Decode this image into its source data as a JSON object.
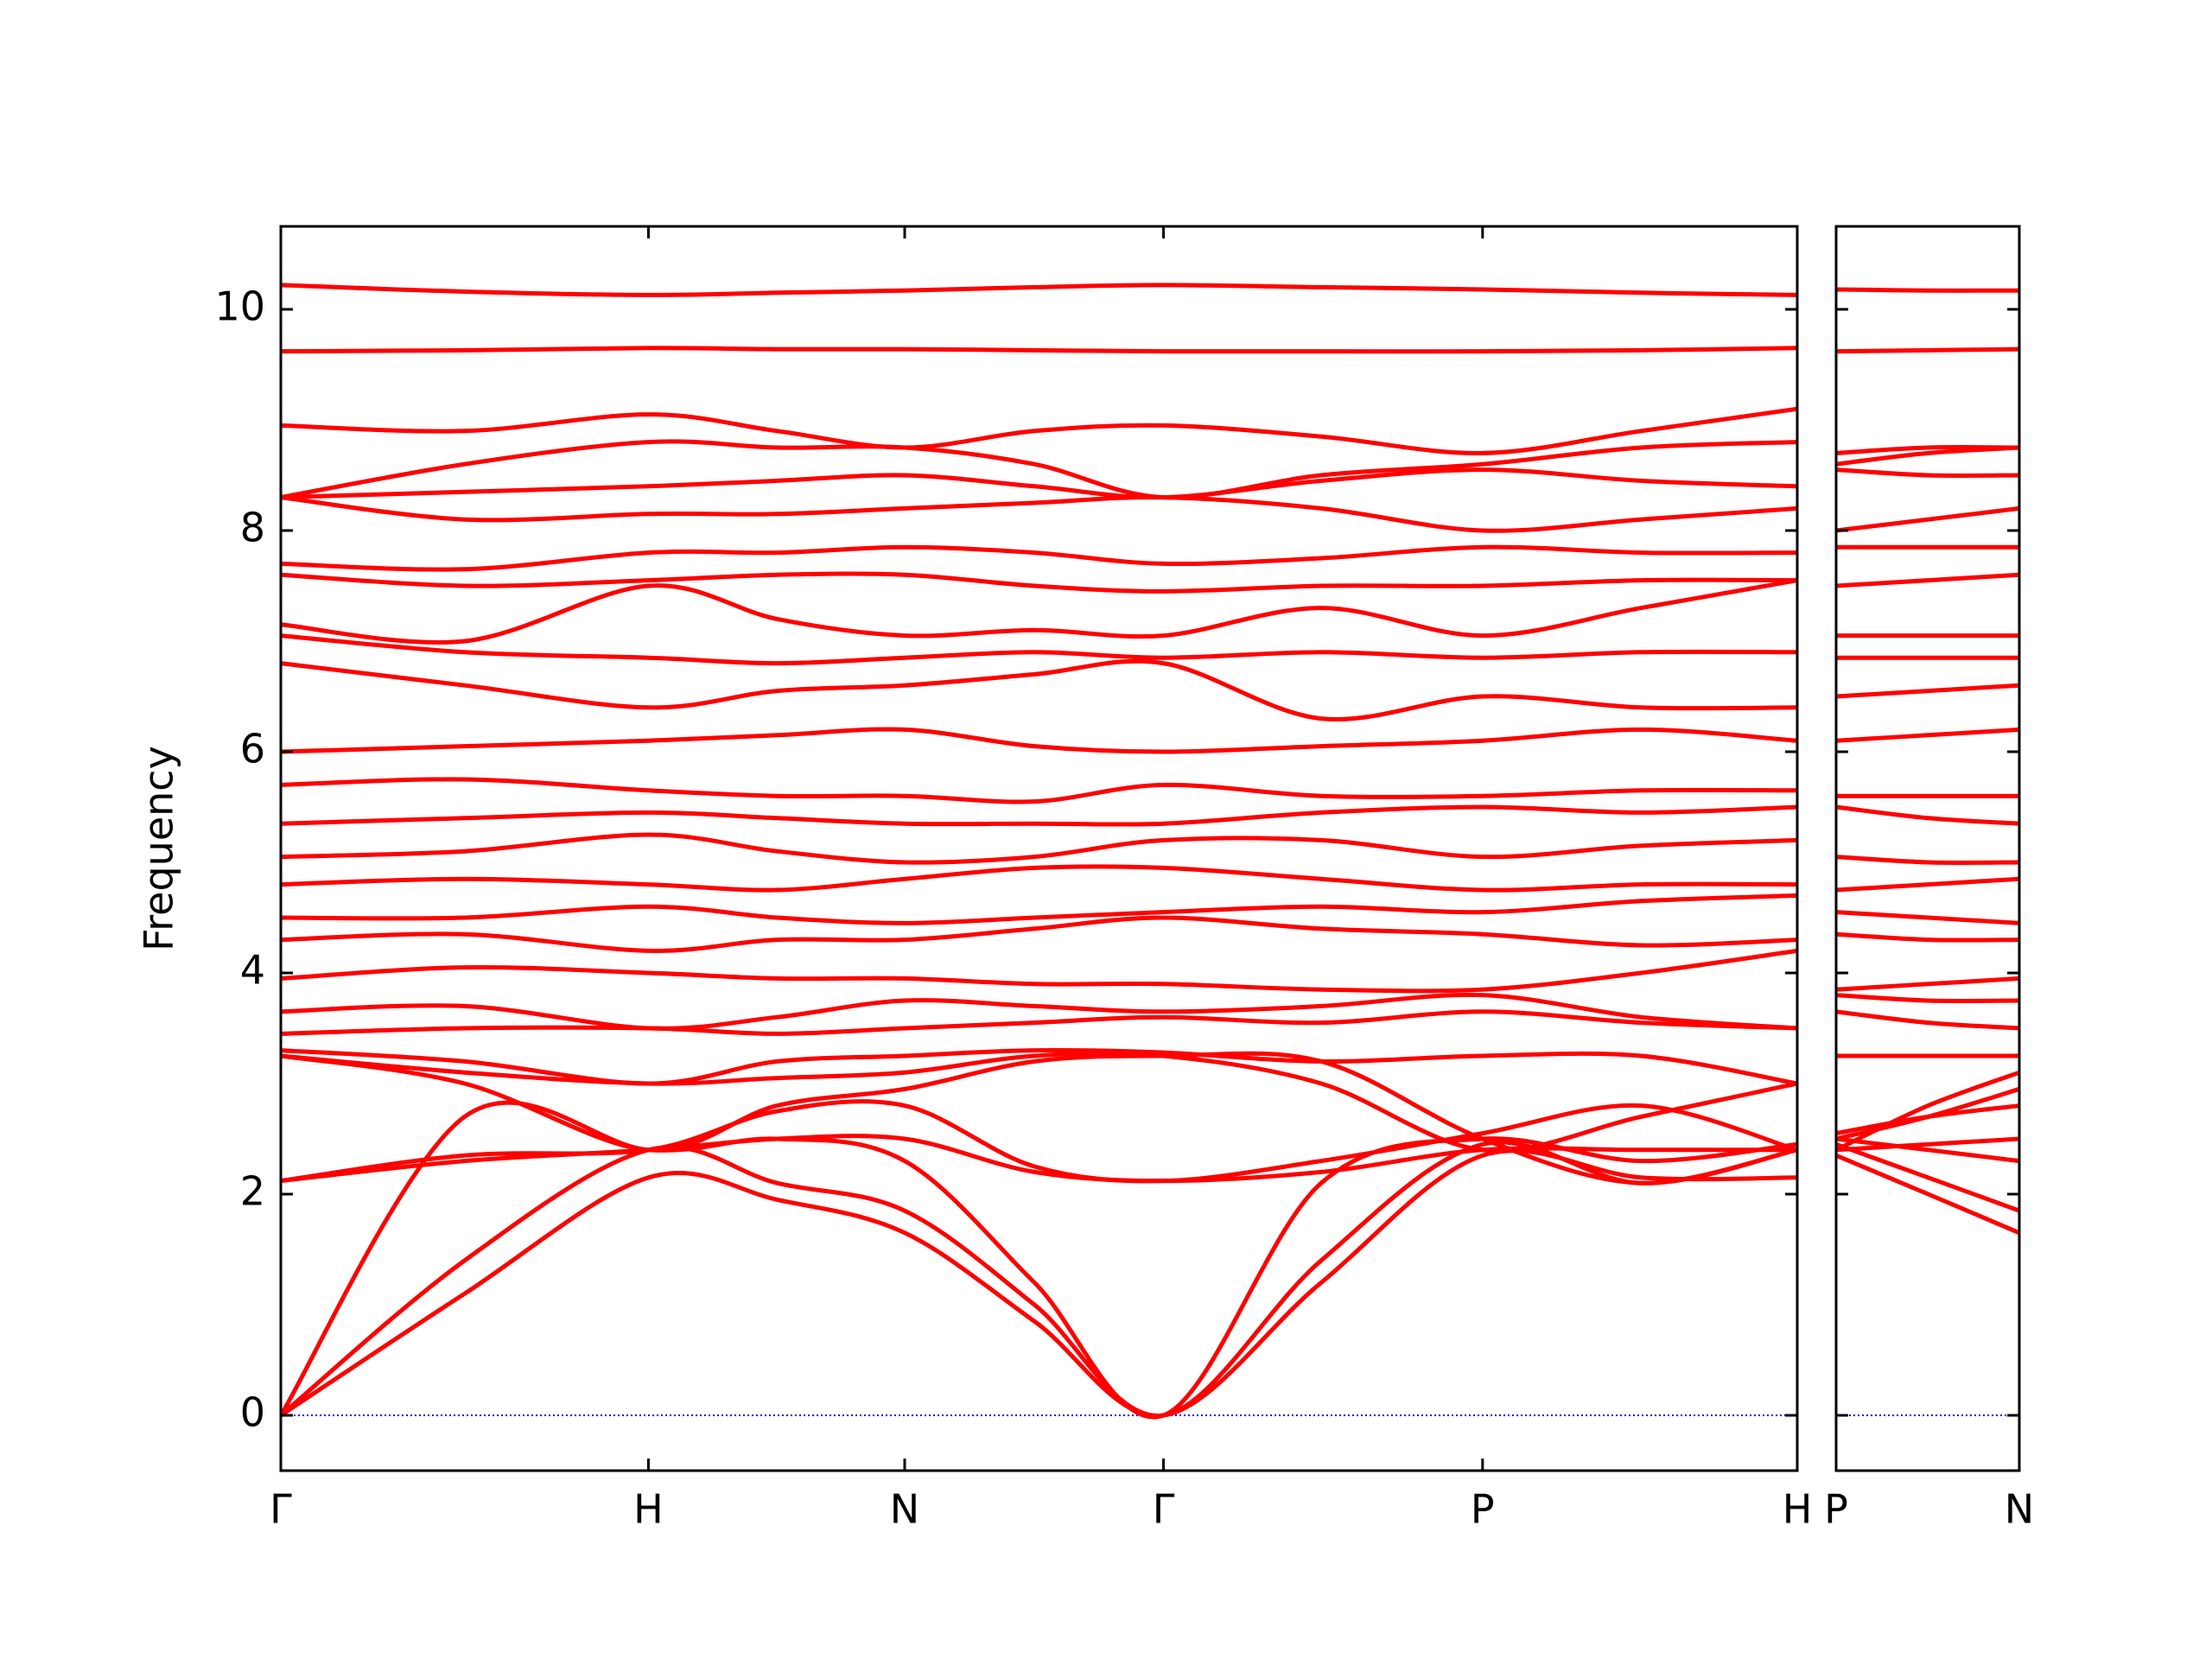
{
  "chart_data": [
    {
      "type": "line",
      "ylabel": "Frequency",
      "color": "#ff0000",
      "ylim": [
        -0.5,
        10.75
      ],
      "xlim": [
        0,
        4.125
      ],
      "yticks": [
        0,
        2,
        4,
        6,
        8,
        10
      ],
      "xticks": [
        {
          "value": 0,
          "label": "Γ"
        },
        {
          "value": 1,
          "label": "H"
        },
        {
          "value": 1.697,
          "label": "N"
        },
        {
          "value": 2.401,
          "label": "Γ"
        },
        {
          "value": 3.269,
          "label": "P"
        },
        {
          "value": 4.125,
          "label": "H"
        }
      ],
      "hlines": [
        0
      ],
      "hline_color": "#0000cc",
      "x": [
        0,
        0.5,
        1,
        1.35,
        1.697,
        2.05,
        2.401,
        2.83,
        3.269,
        3.7,
        4.125
      ],
      "series": [
        {
          "values": [
            0,
            1.1,
            2.15,
            1.95,
            1.65,
            0.85,
            0,
            1.2,
            2.35,
            2.15,
            2.15
          ]
        },
        {
          "values": [
            0,
            1.4,
            2.4,
            2.1,
            1.85,
            1.0,
            0,
            1.4,
            2.45,
            2.1,
            2.4
          ]
        },
        {
          "values": [
            0,
            2.7,
            2.4,
            2.5,
            2.3,
            1.2,
            0,
            2.1,
            2.5,
            2.3,
            2.45
          ]
        },
        {
          "values": [
            2.12,
            2.3,
            2.4,
            2.5,
            2.5,
            2.2,
            2.12,
            2.2,
            2.4,
            2.4,
            2.4
          ]
        },
        {
          "values": [
            2.12,
            2.35,
            2.4,
            2.75,
            2.8,
            2.25,
            2.12,
            2.3,
            2.55,
            2.8,
            2.4
          ]
        },
        {
          "values": [
            3.25,
            3.0,
            2.4,
            2.8,
            2.95,
            3.2,
            3.25,
            3.2,
            2.5,
            2.1,
            2.4
          ]
        },
        {
          "values": [
            3.25,
            3.1,
            3.0,
            3.05,
            3.1,
            3.25,
            3.25,
            3.0,
            2.4,
            2.7,
            3.0
          ]
        },
        {
          "values": [
            3.3,
            3.2,
            3.0,
            3.2,
            3.25,
            3.3,
            3.28,
            3.2,
            3.25,
            3.25,
            3.0
          ]
        },
        {
          "values": [
            3.45,
            3.5,
            3.5,
            3.45,
            3.5,
            3.55,
            3.6,
            3.55,
            3.65,
            3.55,
            3.5
          ]
        },
        {
          "values": [
            3.65,
            3.7,
            3.5,
            3.6,
            3.75,
            3.7,
            3.65,
            3.7,
            3.8,
            3.6,
            3.5
          ]
        },
        {
          "values": [
            3.95,
            4.05,
            4.0,
            3.95,
            3.95,
            3.9,
            3.9,
            3.85,
            3.85,
            4.0,
            4.2
          ]
        },
        {
          "values": [
            4.3,
            4.35,
            4.2,
            4.3,
            4.3,
            4.4,
            4.5,
            4.4,
            4.35,
            4.25,
            4.3
          ]
        },
        {
          "values": [
            4.5,
            4.5,
            4.6,
            4.5,
            4.45,
            4.5,
            4.55,
            4.6,
            4.55,
            4.65,
            4.7
          ]
        },
        {
          "values": [
            4.8,
            4.85,
            4.8,
            4.75,
            4.85,
            4.95,
            4.95,
            4.85,
            4.75,
            4.8,
            4.8
          ]
        },
        {
          "values": [
            5.05,
            5.1,
            5.25,
            5.1,
            5.0,
            5.05,
            5.2,
            5.2,
            5.05,
            5.15,
            5.2
          ]
        },
        {
          "values": [
            5.35,
            5.4,
            5.45,
            5.4,
            5.35,
            5.35,
            5.35,
            5.45,
            5.5,
            5.45,
            5.5
          ]
        },
        {
          "values": [
            5.7,
            5.75,
            5.65,
            5.6,
            5.6,
            5.55,
            5.7,
            5.6,
            5.6,
            5.65,
            5.65
          ]
        },
        {
          "values": [
            6.0,
            6.05,
            6.1,
            6.15,
            6.2,
            6.05,
            6.0,
            6.05,
            6.1,
            6.2,
            6.1
          ]
        },
        {
          "values": [
            6.8,
            6.6,
            6.4,
            6.55,
            6.6,
            6.7,
            6.8,
            6.3,
            6.5,
            6.4,
            6.4
          ]
        },
        {
          "values": [
            7.05,
            6.9,
            6.85,
            6.8,
            6.85,
            6.9,
            6.85,
            6.9,
            6.85,
            6.9,
            6.9
          ]
        },
        {
          "values": [
            7.15,
            7.0,
            7.5,
            7.2,
            7.05,
            7.1,
            7.05,
            7.3,
            7.05,
            7.3,
            7.55
          ]
        },
        {
          "values": [
            7.6,
            7.5,
            7.55,
            7.6,
            7.6,
            7.5,
            7.45,
            7.5,
            7.5,
            7.55,
            7.55
          ]
        },
        {
          "values": [
            7.7,
            7.65,
            7.8,
            7.8,
            7.85,
            7.8,
            7.7,
            7.75,
            7.85,
            7.8,
            7.8
          ]
        },
        {
          "values": [
            8.3,
            8.1,
            8.15,
            8.15,
            8.2,
            8.25,
            8.3,
            8.2,
            8.0,
            8.1,
            8.2
          ]
        },
        {
          "values": [
            8.3,
            8.35,
            8.4,
            8.45,
            8.5,
            8.4,
            8.3,
            8.45,
            8.55,
            8.45,
            8.4
          ]
        },
        {
          "values": [
            8.3,
            8.6,
            8.8,
            8.75,
            8.75,
            8.6,
            8.3,
            8.5,
            8.6,
            8.75,
            8.8
          ]
        },
        {
          "values": [
            8.95,
            8.9,
            9.05,
            8.9,
            8.75,
            8.9,
            8.95,
            8.85,
            8.7,
            8.9,
            9.1
          ]
        },
        {
          "values": [
            9.62,
            9.63,
            9.65,
            9.64,
            9.64,
            9.63,
            9.62,
            9.62,
            9.62,
            9.63,
            9.65
          ]
        },
        {
          "values": [
            10.22,
            10.16,
            10.13,
            10.15,
            10.17,
            10.2,
            10.22,
            10.2,
            10.18,
            10.15,
            10.13
          ]
        }
      ]
    },
    {
      "type": "line",
      "color": "#ff0000",
      "ylim": [
        -0.5,
        10.75
      ],
      "xlim": [
        0,
        0.498
      ],
      "xticks": [
        {
          "value": 0,
          "label": "P"
        },
        {
          "value": 0.498,
          "label": "N"
        }
      ],
      "hlines": [
        0
      ],
      "hline_color": "#0000cc",
      "x": [
        0,
        0.25,
        0.498
      ],
      "series": [
        {
          "values": [
            2.35,
            2.0,
            1.65
          ]
        },
        {
          "values": [
            2.45,
            2.15,
            1.85
          ]
        },
        {
          "values": [
            2.5,
            2.4,
            2.3
          ]
        },
        {
          "values": [
            2.4,
            2.45,
            2.5
          ]
        },
        {
          "values": [
            2.55,
            2.7,
            2.8
          ]
        },
        {
          "values": [
            2.5,
            2.7,
            2.95
          ]
        },
        {
          "values": [
            2.4,
            2.8,
            3.1
          ]
        },
        {
          "values": [
            3.25,
            3.25,
            3.25
          ]
        },
        {
          "values": [
            3.65,
            3.55,
            3.5
          ]
        },
        {
          "values": [
            3.8,
            3.75,
            3.75
          ]
        },
        {
          "values": [
            3.85,
            3.9,
            3.95
          ]
        },
        {
          "values": [
            4.35,
            4.3,
            4.3
          ]
        },
        {
          "values": [
            4.55,
            4.5,
            4.45
          ]
        },
        {
          "values": [
            4.75,
            4.8,
            4.85
          ]
        },
        {
          "values": [
            5.05,
            5.0,
            5.0
          ]
        },
        {
          "values": [
            5.5,
            5.4,
            5.35
          ]
        },
        {
          "values": [
            5.6,
            5.6,
            5.6
          ]
        },
        {
          "values": [
            6.1,
            6.15,
            6.2
          ]
        },
        {
          "values": [
            6.5,
            6.55,
            6.6
          ]
        },
        {
          "values": [
            6.85,
            6.85,
            6.85
          ]
        },
        {
          "values": [
            7.05,
            7.05,
            7.05
          ]
        },
        {
          "values": [
            7.5,
            7.55,
            7.6
          ]
        },
        {
          "values": [
            7.85,
            7.85,
            7.85
          ]
        },
        {
          "values": [
            8.0,
            8.1,
            8.2
          ]
        },
        {
          "values": [
            8.55,
            8.5,
            8.5
          ]
        },
        {
          "values": [
            8.6,
            8.7,
            8.75
          ]
        },
        {
          "values": [
            8.7,
            8.75,
            8.75
          ]
        },
        {
          "values": [
            9.62,
            9.63,
            9.64
          ]
        },
        {
          "values": [
            10.18,
            10.17,
            10.17
          ]
        }
      ]
    }
  ]
}
